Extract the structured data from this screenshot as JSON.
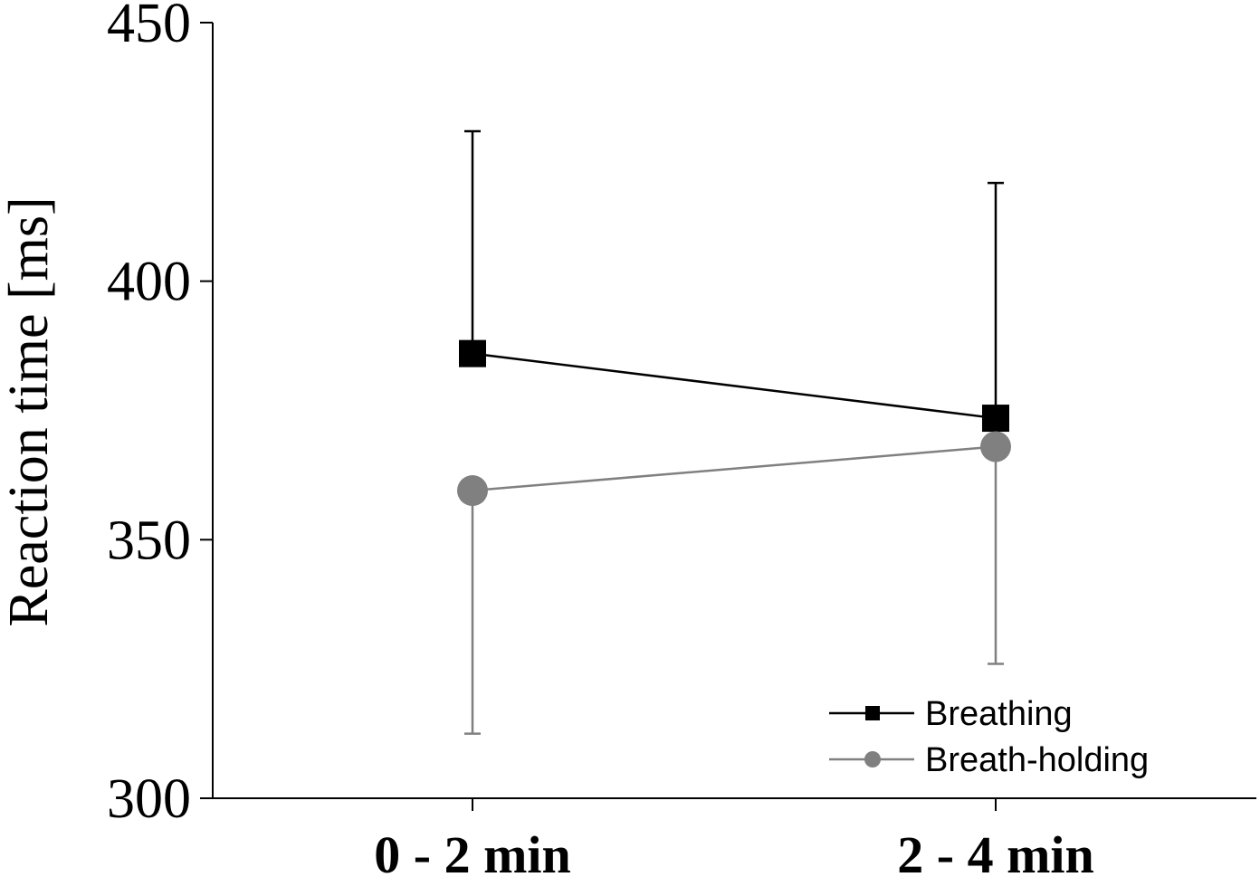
{
  "chart_data": {
    "type": "line",
    "title": "",
    "xlabel": "",
    "ylabel": "Reaction time [ms]",
    "categories": [
      "0 - 2 min",
      "2 - 4 min"
    ],
    "ylim": [
      300,
      450
    ],
    "yticks": [
      300,
      350,
      400,
      450
    ],
    "series": [
      {
        "name": "Breathing",
        "marker": "square",
        "color": "#000000",
        "values": [
          386,
          373.5
        ],
        "error_upper": [
          429,
          419
        ],
        "error_lower": [
          386,
          373.5
        ]
      },
      {
        "name": "Breath-holding",
        "marker": "circle",
        "color": "#808080",
        "values": [
          359.5,
          368
        ],
        "error_upper": [
          359.5,
          368
        ],
        "error_lower": [
          312.5,
          326
        ]
      }
    ],
    "legend": "bottom-right",
    "grid": false
  }
}
